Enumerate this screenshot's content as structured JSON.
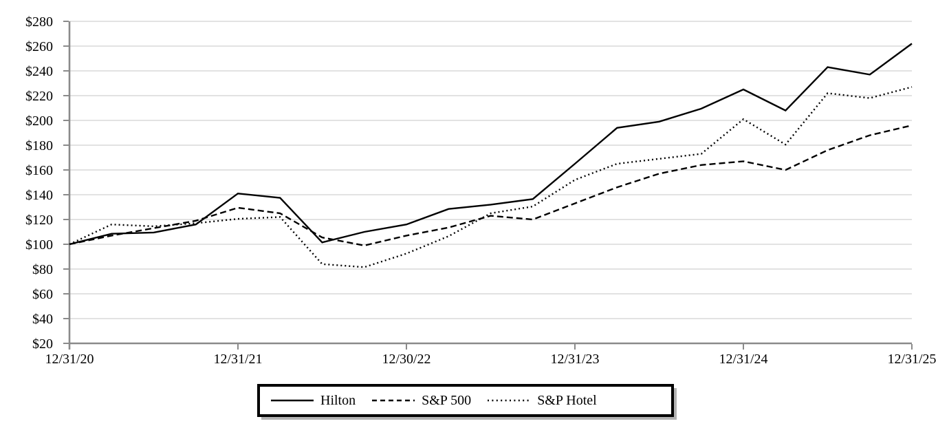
{
  "chart_data": {
    "type": "line",
    "title": "",
    "xlabel": "",
    "ylabel": "",
    "ylim": [
      20,
      280
    ],
    "grid": "horizontal-only",
    "legend_position": "bottom-center-boxed",
    "y_tick_values": [
      20,
      40,
      60,
      80,
      100,
      120,
      140,
      160,
      180,
      200,
      220,
      240,
      260,
      280
    ],
    "y_tick_labels": [
      "$20",
      "$40",
      "$60",
      "$80",
      "$100",
      "$120",
      "$140",
      "$160",
      "$180",
      "$200",
      "$220",
      "$240",
      "$260",
      "$280"
    ],
    "x_tick_labels": [
      "12/31/20",
      "12/31/21",
      "12/30/22",
      "12/31/23",
      "12/31/24",
      "12/31/25"
    ],
    "x_tick_positions": [
      0,
      4,
      8,
      12,
      16,
      20
    ],
    "x_frequency": "quarterly",
    "series": [
      {
        "name": "Hilton",
        "line_style": "solid",
        "values": [
          100,
          108.5,
          109.5,
          116,
          141,
          137.5,
          101.5,
          110,
          116,
          128.5,
          132,
          136.5,
          165,
          194,
          199,
          209.5,
          225,
          208,
          243,
          237,
          262
        ]
      },
      {
        "name": "S&P 500",
        "line_style": "dashed",
        "values": [
          100,
          107,
          113,
          119,
          129.5,
          125,
          105.5,
          99,
          107,
          113.5,
          123,
          120,
          133,
          146,
          157,
          164,
          167,
          160,
          176,
          188,
          196
        ]
      },
      {
        "name": "S&P Hotel",
        "line_style": "dotted",
        "values": [
          100,
          116,
          114.5,
          117,
          120.5,
          122,
          84,
          81.5,
          92.5,
          106.5,
          125,
          130.5,
          152,
          165,
          169,
          173,
          201,
          180.5,
          222,
          218,
          227
        ]
      }
    ],
    "colors": {
      "series_line": "#000000",
      "gridline": "#d9d9d9",
      "axis": "#8a8a8a",
      "tick_label": "#000000",
      "legend_border": "#000000",
      "legend_shadow": "#b3b3b3",
      "background": "#ffffff"
    }
  }
}
